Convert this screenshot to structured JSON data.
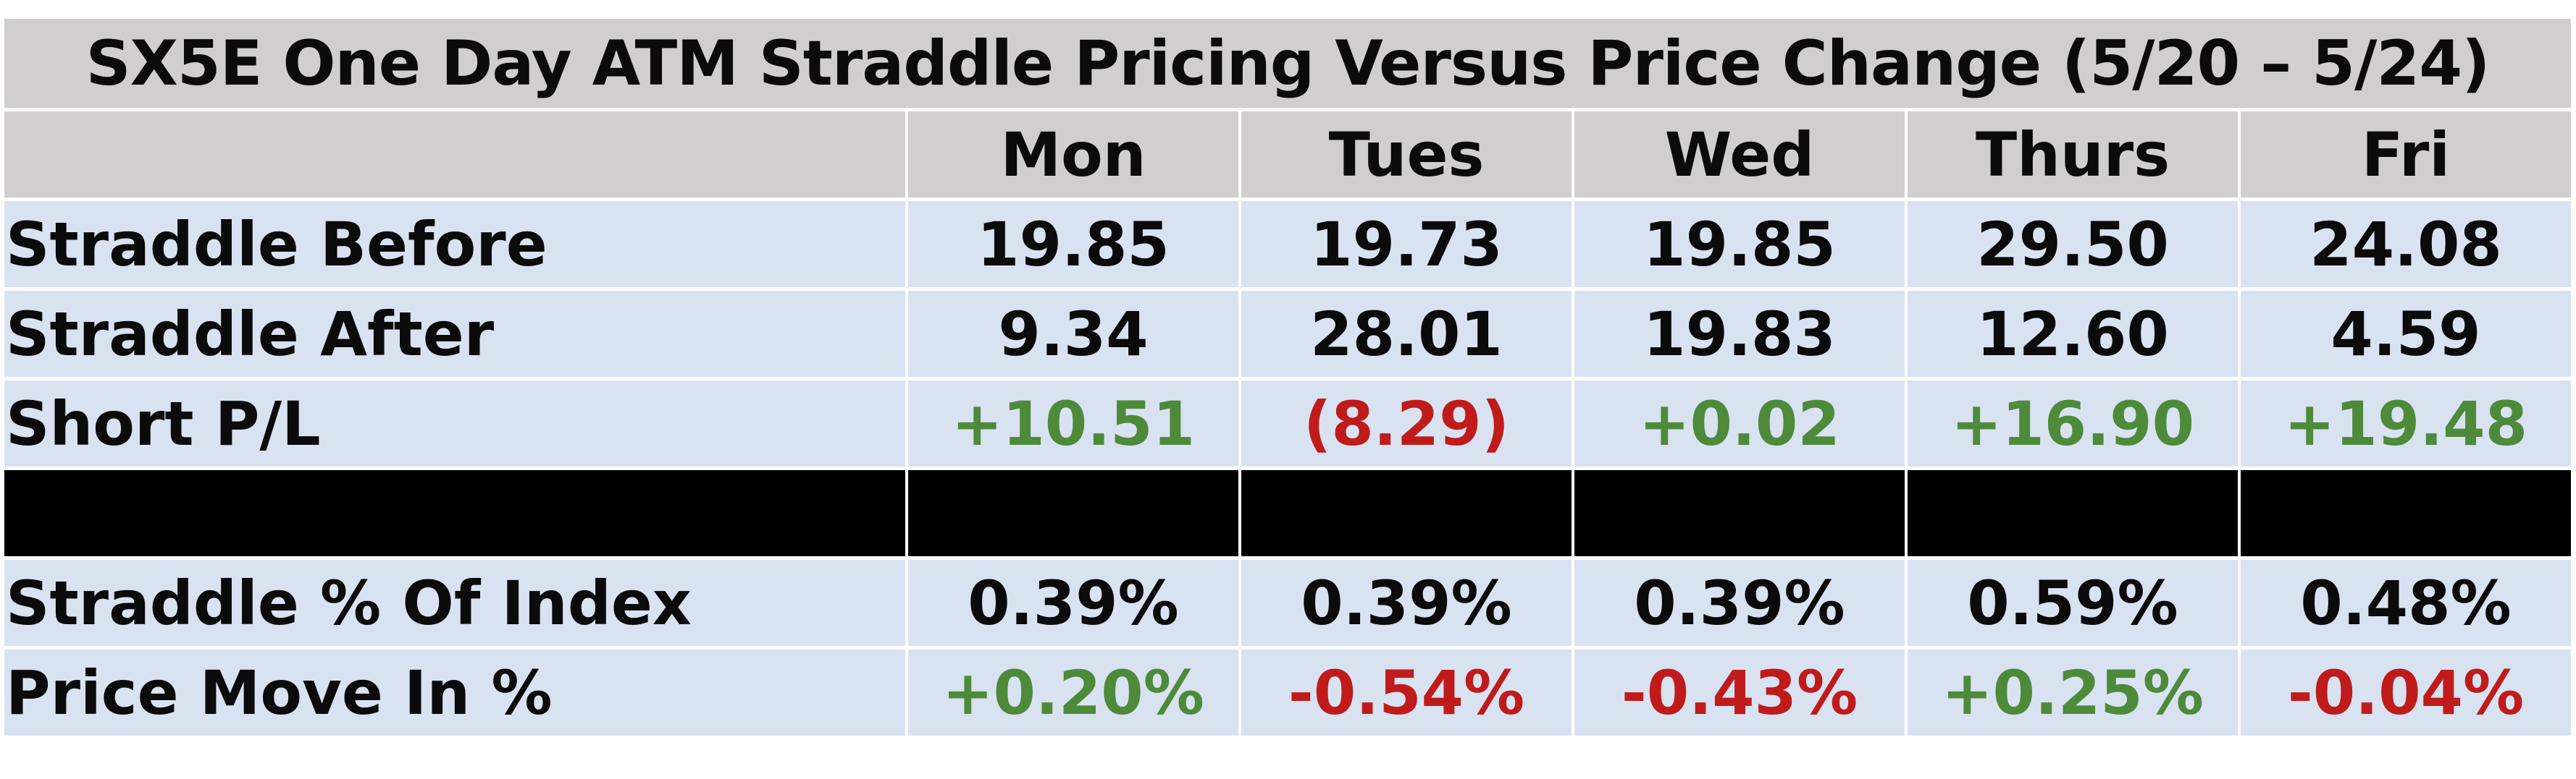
{
  "chart_data": {
    "type": "table",
    "title": "SX5E One Day ATM Straddle Pricing Versus Price Change (5/20 – 5/24)",
    "columns": [
      "",
      "Mon",
      "Tues",
      "Wed",
      "Thurs",
      "Fri"
    ],
    "rows": [
      {
        "label": "Straddle Before",
        "values": [
          "19.85",
          "19.73",
          "19.85",
          "29.50",
          "24.08"
        ],
        "tones": [
          "plain",
          "plain",
          "plain",
          "plain",
          "plain"
        ]
      },
      {
        "label": "Straddle After",
        "values": [
          "9.34",
          "28.01",
          "19.83",
          "12.60",
          "4.59"
        ],
        "tones": [
          "plain",
          "plain",
          "plain",
          "plain",
          "plain"
        ]
      },
      {
        "label": "Short P/L",
        "values": [
          "+10.51",
          "(8.29)",
          "+0.02",
          "+16.90",
          "+19.48"
        ],
        "tones": [
          "positive",
          "negative",
          "positive",
          "positive",
          "positive"
        ]
      },
      {
        "label": "Straddle % Of Index",
        "values": [
          "0.39%",
          "0.39%",
          "0.39%",
          "0.59%",
          "0.48%"
        ],
        "tones": [
          "plain",
          "plain",
          "plain",
          "plain",
          "plain"
        ]
      },
      {
        "label": "Price Move In %",
        "values": [
          "+0.20%",
          "-0.54%",
          "-0.43%",
          "+0.25%",
          "-0.04%"
        ],
        "tones": [
          "positive",
          "negative",
          "negative",
          "positive",
          "negative"
        ]
      }
    ]
  },
  "colors": {
    "header_bg": "#d0cecf",
    "row_bg": "#d9e2f1",
    "separator": "#000000",
    "positive": "#4d8a3a",
    "negative": "#c01b1b",
    "text": "#0b0b0b"
  }
}
